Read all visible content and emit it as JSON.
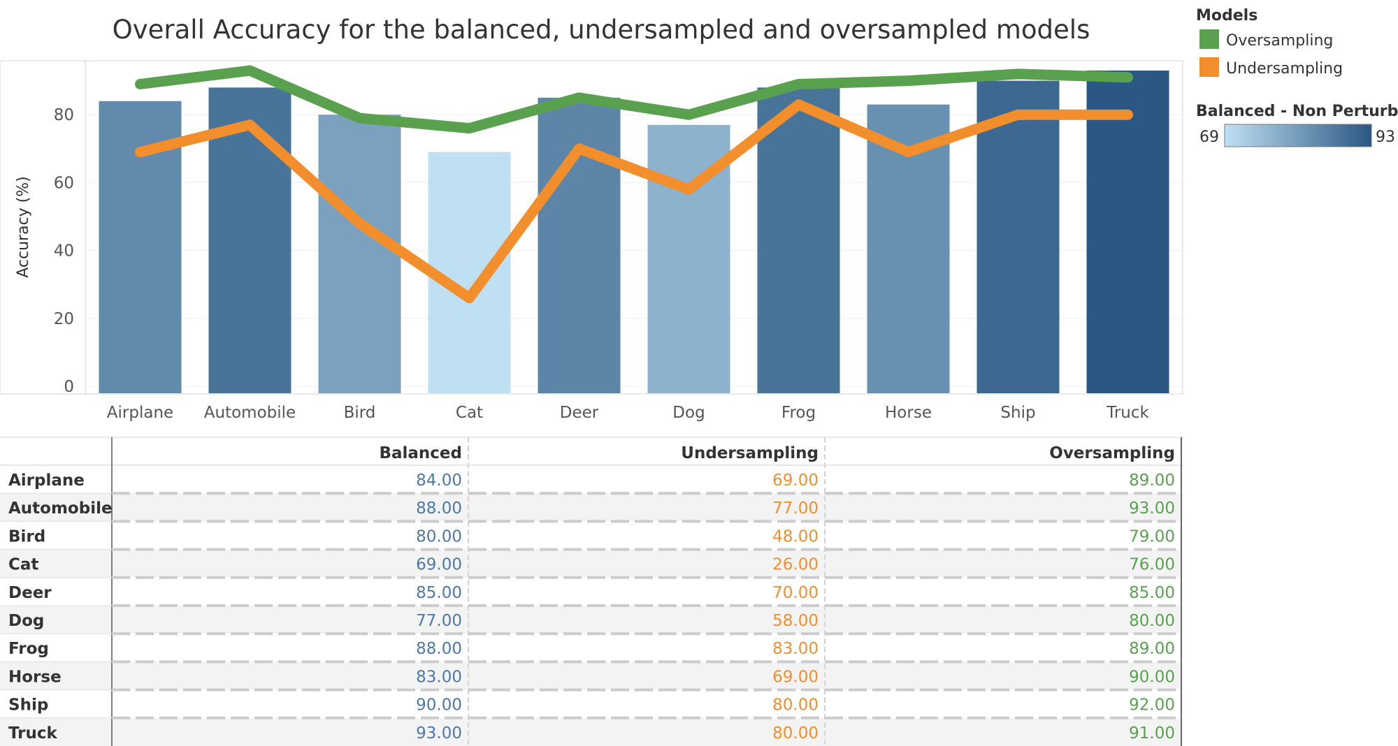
{
  "chart_data": {
    "type": "bar",
    "title": "Overall Accuracy for the balanced, undersampled and oversampled models",
    "ylabel": "Accuracy (%)",
    "xlabel": "",
    "ylim": [
      0,
      100
    ],
    "yticks": [
      0,
      20,
      40,
      60,
      80
    ],
    "categories": [
      "Airplane",
      "Automobile",
      "Bird",
      "Cat",
      "Deer",
      "Dog",
      "Frog",
      "Horse",
      "Ship",
      "Truck"
    ],
    "bars": {
      "name": "Balanced",
      "values": [
        84,
        88,
        80,
        69,
        85,
        77,
        88,
        83,
        90,
        93
      ]
    },
    "lines": [
      {
        "name": "Oversampling",
        "color": "#59a14f",
        "values": [
          89,
          93,
          79,
          76,
          85,
          80,
          89,
          90,
          92,
          91
        ]
      },
      {
        "name": "Undersampling",
        "color": "#f28e2b",
        "values": [
          69,
          77,
          48,
          26,
          70,
          58,
          83,
          69,
          80,
          80
        ]
      }
    ],
    "color_scale": {
      "min": 69,
      "max": 93,
      "min_color": "#bfe0f2",
      "max_color": "#2a5783"
    },
    "legend": {
      "models_title": "Models",
      "color_title": "Balanced - Non Perturbed",
      "min_label": "69",
      "max_label": "93",
      "placement": "right"
    },
    "table": {
      "columns": [
        "Balanced",
        "Undersampling",
        "Oversampling"
      ],
      "column_colors": [
        "#4e79a7",
        "#f28e2b",
        "#59a14f"
      ],
      "rows": [
        {
          "label": "Airplane",
          "values": [
            "84.00",
            "69.00",
            "89.00"
          ]
        },
        {
          "label": "Automobile",
          "values": [
            "88.00",
            "77.00",
            "93.00"
          ]
        },
        {
          "label": "Bird",
          "values": [
            "80.00",
            "48.00",
            "79.00"
          ]
        },
        {
          "label": "Cat",
          "values": [
            "69.00",
            "26.00",
            "76.00"
          ]
        },
        {
          "label": "Deer",
          "values": [
            "85.00",
            "70.00",
            "85.00"
          ]
        },
        {
          "label": "Dog",
          "values": [
            "77.00",
            "58.00",
            "80.00"
          ]
        },
        {
          "label": "Frog",
          "values": [
            "88.00",
            "83.00",
            "89.00"
          ]
        },
        {
          "label": "Horse",
          "values": [
            "83.00",
            "69.00",
            "90.00"
          ]
        },
        {
          "label": "Ship",
          "values": [
            "90.00",
            "80.00",
            "92.00"
          ]
        },
        {
          "label": "Truck",
          "values": [
            "93.00",
            "80.00",
            "91.00"
          ]
        }
      ]
    }
  }
}
